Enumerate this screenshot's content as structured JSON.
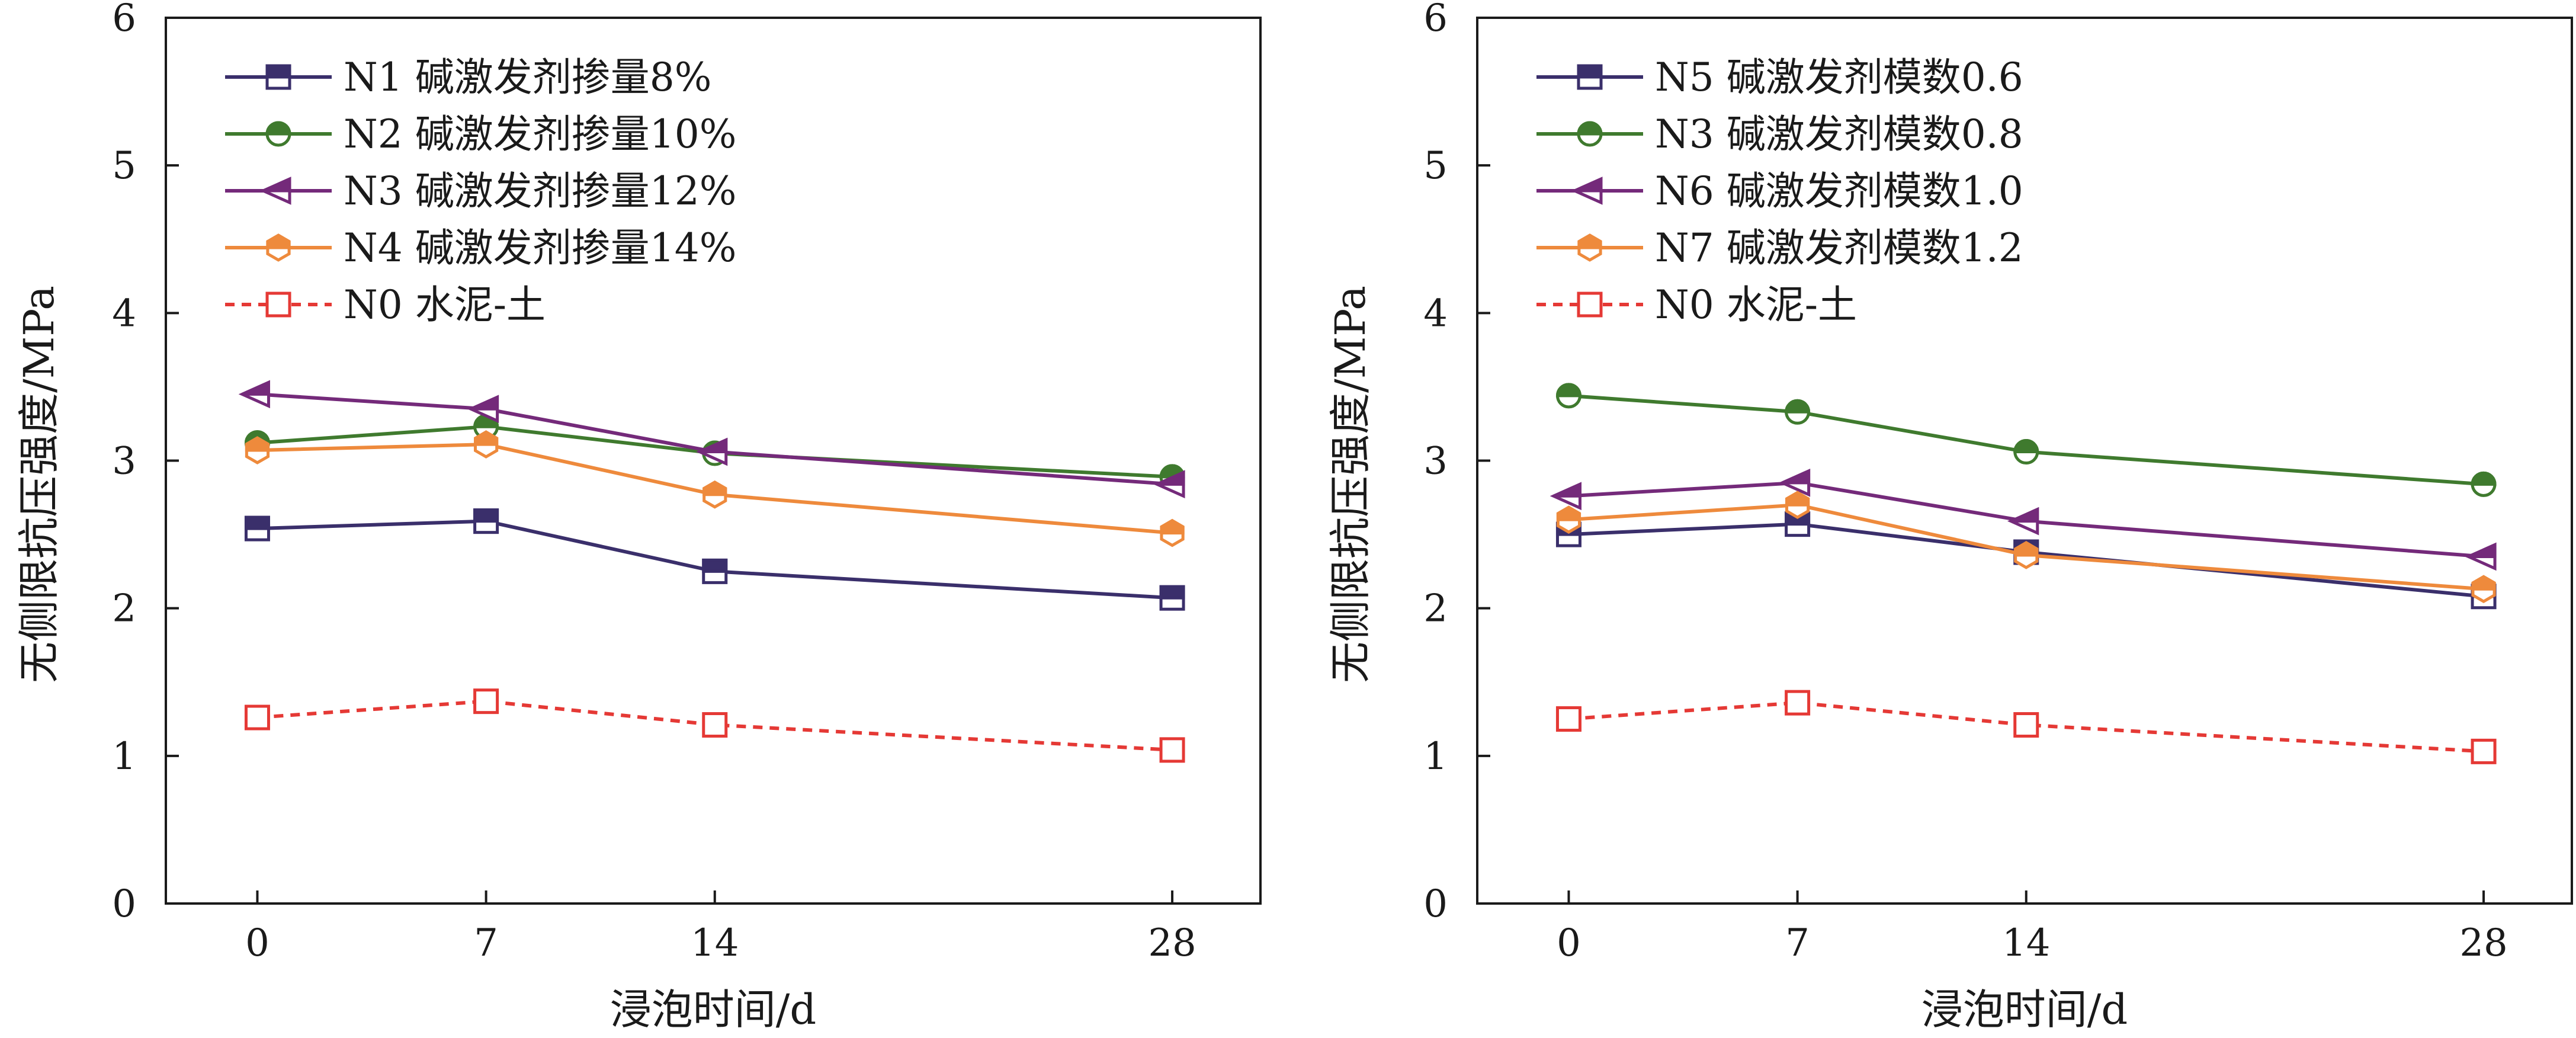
{
  "chart_data": [
    {
      "type": "line",
      "xlabel": "浸泡时间/d",
      "ylabel": "无侧限抗压强度/MPa",
      "x": [
        0,
        7,
        14,
        28
      ],
      "xticks": [
        "0",
        "7",
        "14",
        "28"
      ],
      "yticks": [
        "0",
        "1",
        "2",
        "3",
        "4",
        "5",
        "6"
      ],
      "ylim": [
        0,
        6
      ],
      "xlim": [
        -2.8,
        30.7
      ],
      "legend_position": "top-left",
      "grid": false,
      "series": [
        {
          "name": "N1 碱激发剂掺量8%",
          "values": [
            2.54,
            2.59,
            2.25,
            2.07
          ],
          "color": "#3a2f6b",
          "marker": "square-half",
          "dash": false
        },
        {
          "name": "N2 碱激发剂掺量10%",
          "values": [
            3.12,
            3.23,
            3.05,
            2.89
          ],
          "color": "#3f7a2e",
          "marker": "circle-half",
          "dash": false
        },
        {
          "name": "N3 碱激发剂掺量12%",
          "values": [
            3.45,
            3.35,
            3.06,
            2.84
          ],
          "color": "#742a7a",
          "marker": "triangle-left-half",
          "dash": false
        },
        {
          "name": "N4 碱激发剂掺量14%",
          "values": [
            3.07,
            3.11,
            2.77,
            2.51
          ],
          "color": "#ee8a3c",
          "marker": "hexagon-half",
          "dash": false
        },
        {
          "name": "N0 水泥-土",
          "values": [
            1.26,
            1.37,
            1.21,
            1.04
          ],
          "color": "#e53935",
          "marker": "square-open",
          "dash": true
        }
      ]
    },
    {
      "type": "line",
      "xlabel": "浸泡时间/d",
      "ylabel": "无侧限抗压强度/MPa",
      "x": [
        0,
        7,
        14,
        28
      ],
      "xticks": [
        "0",
        "7",
        "14",
        "28"
      ],
      "yticks": [
        "0",
        "1",
        "2",
        "3",
        "4",
        "5",
        "6"
      ],
      "ylim": [
        0,
        6
      ],
      "xlim": [
        -2.8,
        30.7
      ],
      "legend_position": "top-left",
      "grid": false,
      "series": [
        {
          "name": "N5 碱激发剂模数0.6",
          "values": [
            2.5,
            2.57,
            2.38,
            2.08
          ],
          "color": "#3a2f6b",
          "marker": "square-half",
          "dash": false
        },
        {
          "name": "N3 碱激发剂模数0.8",
          "values": [
            3.44,
            3.33,
            3.06,
            2.84
          ],
          "color": "#3f7a2e",
          "marker": "circle-half",
          "dash": false
        },
        {
          "name": "N6 碱激发剂模数1.0",
          "values": [
            2.76,
            2.85,
            2.59,
            2.35
          ],
          "color": "#742a7a",
          "marker": "triangle-left-half",
          "dash": false
        },
        {
          "name": "N7 碱激发剂模数1.2",
          "values": [
            2.6,
            2.7,
            2.36,
            2.13
          ],
          "color": "#ee8a3c",
          "marker": "hexagon-half",
          "dash": false
        },
        {
          "name": "N0 水泥-土",
          "values": [
            1.25,
            1.36,
            1.21,
            1.03
          ],
          "color": "#e53935",
          "marker": "square-open",
          "dash": true
        }
      ]
    }
  ]
}
